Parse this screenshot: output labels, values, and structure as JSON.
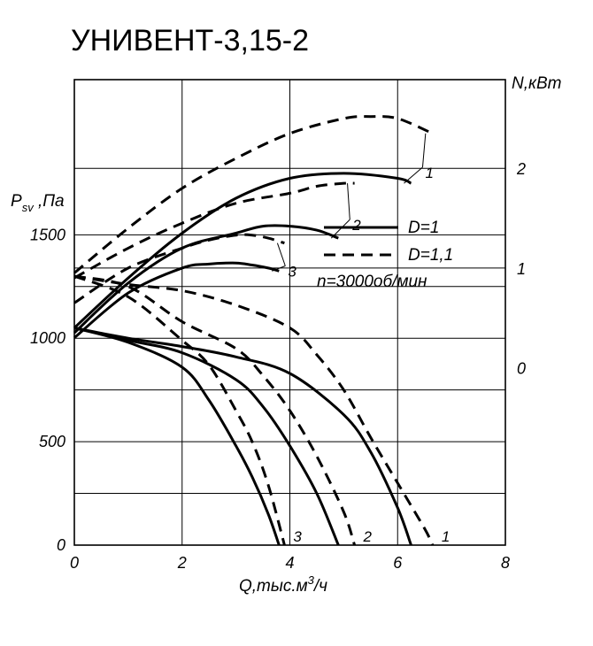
{
  "chart_data": {
    "type": "line",
    "title": "УНИВЕНТ-3,15-2",
    "xlabel": "Q,тыс.м³/ч",
    "xlabel_parts": {
      "main": "Q,тыс.м",
      "sup": "3",
      "tail": "/ч"
    },
    "ylabel_left": {
      "main": "P",
      "sub": "sv",
      "tail": " ,Па"
    },
    "ylabel_right": "N,кВт",
    "x_ticks": [
      "0",
      "2",
      "4",
      "6",
      "8"
    ],
    "y_left_ticks": [
      "0",
      "500",
      "1000",
      "1500"
    ],
    "y_right_ticks": [
      "0",
      "1",
      "2"
    ],
    "xlim": [
      0,
      8
    ],
    "ylim_pressure": [
      0,
      2250
    ],
    "ylim_power": [
      -1.78,
      2.89
    ],
    "grid": true,
    "legend": {
      "solid": "D=1",
      "dashed": "D=1,1",
      "note": "n=3000об/мин",
      "placement": "right-middle"
    },
    "pressure_series": [
      {
        "label": "1",
        "style": "solid",
        "x": [
          0,
          1,
          2,
          3,
          4,
          5,
          5.5,
          6,
          6.25
        ],
        "y": [
          1050,
          1000,
          960,
          910,
          830,
          630,
          450,
          180,
          0
        ]
      },
      {
        "label": "1",
        "style": "dashed",
        "x": [
          0,
          1,
          2,
          3,
          4,
          4.5,
          5,
          5.5,
          6,
          6.5,
          6.65
        ],
        "y": [
          1300,
          1260,
          1230,
          1160,
          1050,
          920,
          750,
          520,
          300,
          80,
          0
        ]
      },
      {
        "label": "2",
        "style": "solid",
        "x": [
          0,
          1,
          2,
          3,
          3.5,
          4,
          4.5,
          4.9
        ],
        "y": [
          1050,
          990,
          930,
          800,
          670,
          480,
          250,
          0
        ]
      },
      {
        "label": "2",
        "style": "dashed",
        "x": [
          0,
          1,
          2,
          3,
          3.5,
          4,
          4.5,
          5,
          5.2
        ],
        "y": [
          1300,
          1250,
          1080,
          950,
          820,
          650,
          430,
          160,
          0
        ]
      },
      {
        "label": "3",
        "style": "solid",
        "x": [
          0,
          1,
          2,
          2.5,
          3,
          3.3,
          3.6,
          3.8
        ],
        "y": [
          1050,
          980,
          860,
          700,
          480,
          330,
          150,
          0
        ]
      },
      {
        "label": "3",
        "style": "dashed",
        "x": [
          0,
          1,
          2,
          2.5,
          3,
          3.3,
          3.6,
          3.9
        ],
        "y": [
          1300,
          1200,
          990,
          870,
          650,
          500,
          290,
          0
        ]
      }
    ],
    "power_series": [
      {
        "label": "1",
        "style": "solid",
        "x": [
          0,
          1,
          2,
          3,
          4,
          5,
          6,
          6.25
        ],
        "y": [
          0.4,
          0.9,
          1.35,
          1.7,
          1.9,
          1.95,
          1.9,
          1.85
        ]
      },
      {
        "label": "1",
        "style": "dashed",
        "x": [
          0,
          1,
          2,
          3,
          4,
          5,
          5.5,
          6,
          6.65
        ],
        "y": [
          0.95,
          1.4,
          1.8,
          2.1,
          2.35,
          2.5,
          2.52,
          2.5,
          2.35
        ]
      },
      {
        "label": "2",
        "style": "solid",
        "x": [
          0,
          1,
          2,
          3,
          3.5,
          4,
          4.5,
          4.9
        ],
        "y": [
          0.35,
          0.85,
          1.2,
          1.35,
          1.42,
          1.42,
          1.38,
          1.3
        ]
      },
      {
        "label": "2",
        "style": "dashed",
        "x": [
          0,
          1,
          2,
          3,
          4,
          4.5,
          5,
          5.2
        ],
        "y": [
          0.9,
          1.2,
          1.45,
          1.65,
          1.75,
          1.82,
          1.85,
          1.85
        ]
      },
      {
        "label": "3",
        "style": "solid",
        "x": [
          0,
          1,
          2,
          2.5,
          3,
          3.3,
          3.6,
          3.8
        ],
        "y": [
          0.3,
          0.75,
          1.0,
          1.04,
          1.05,
          1.03,
          1.0,
          0.97
        ]
      },
      {
        "label": "3",
        "style": "dashed",
        "x": [
          0,
          1,
          2,
          2.5,
          3,
          3.3,
          3.6,
          3.9
        ],
        "y": [
          0.65,
          1.0,
          1.2,
          1.28,
          1.33,
          1.33,
          1.3,
          1.25
        ]
      }
    ]
  }
}
